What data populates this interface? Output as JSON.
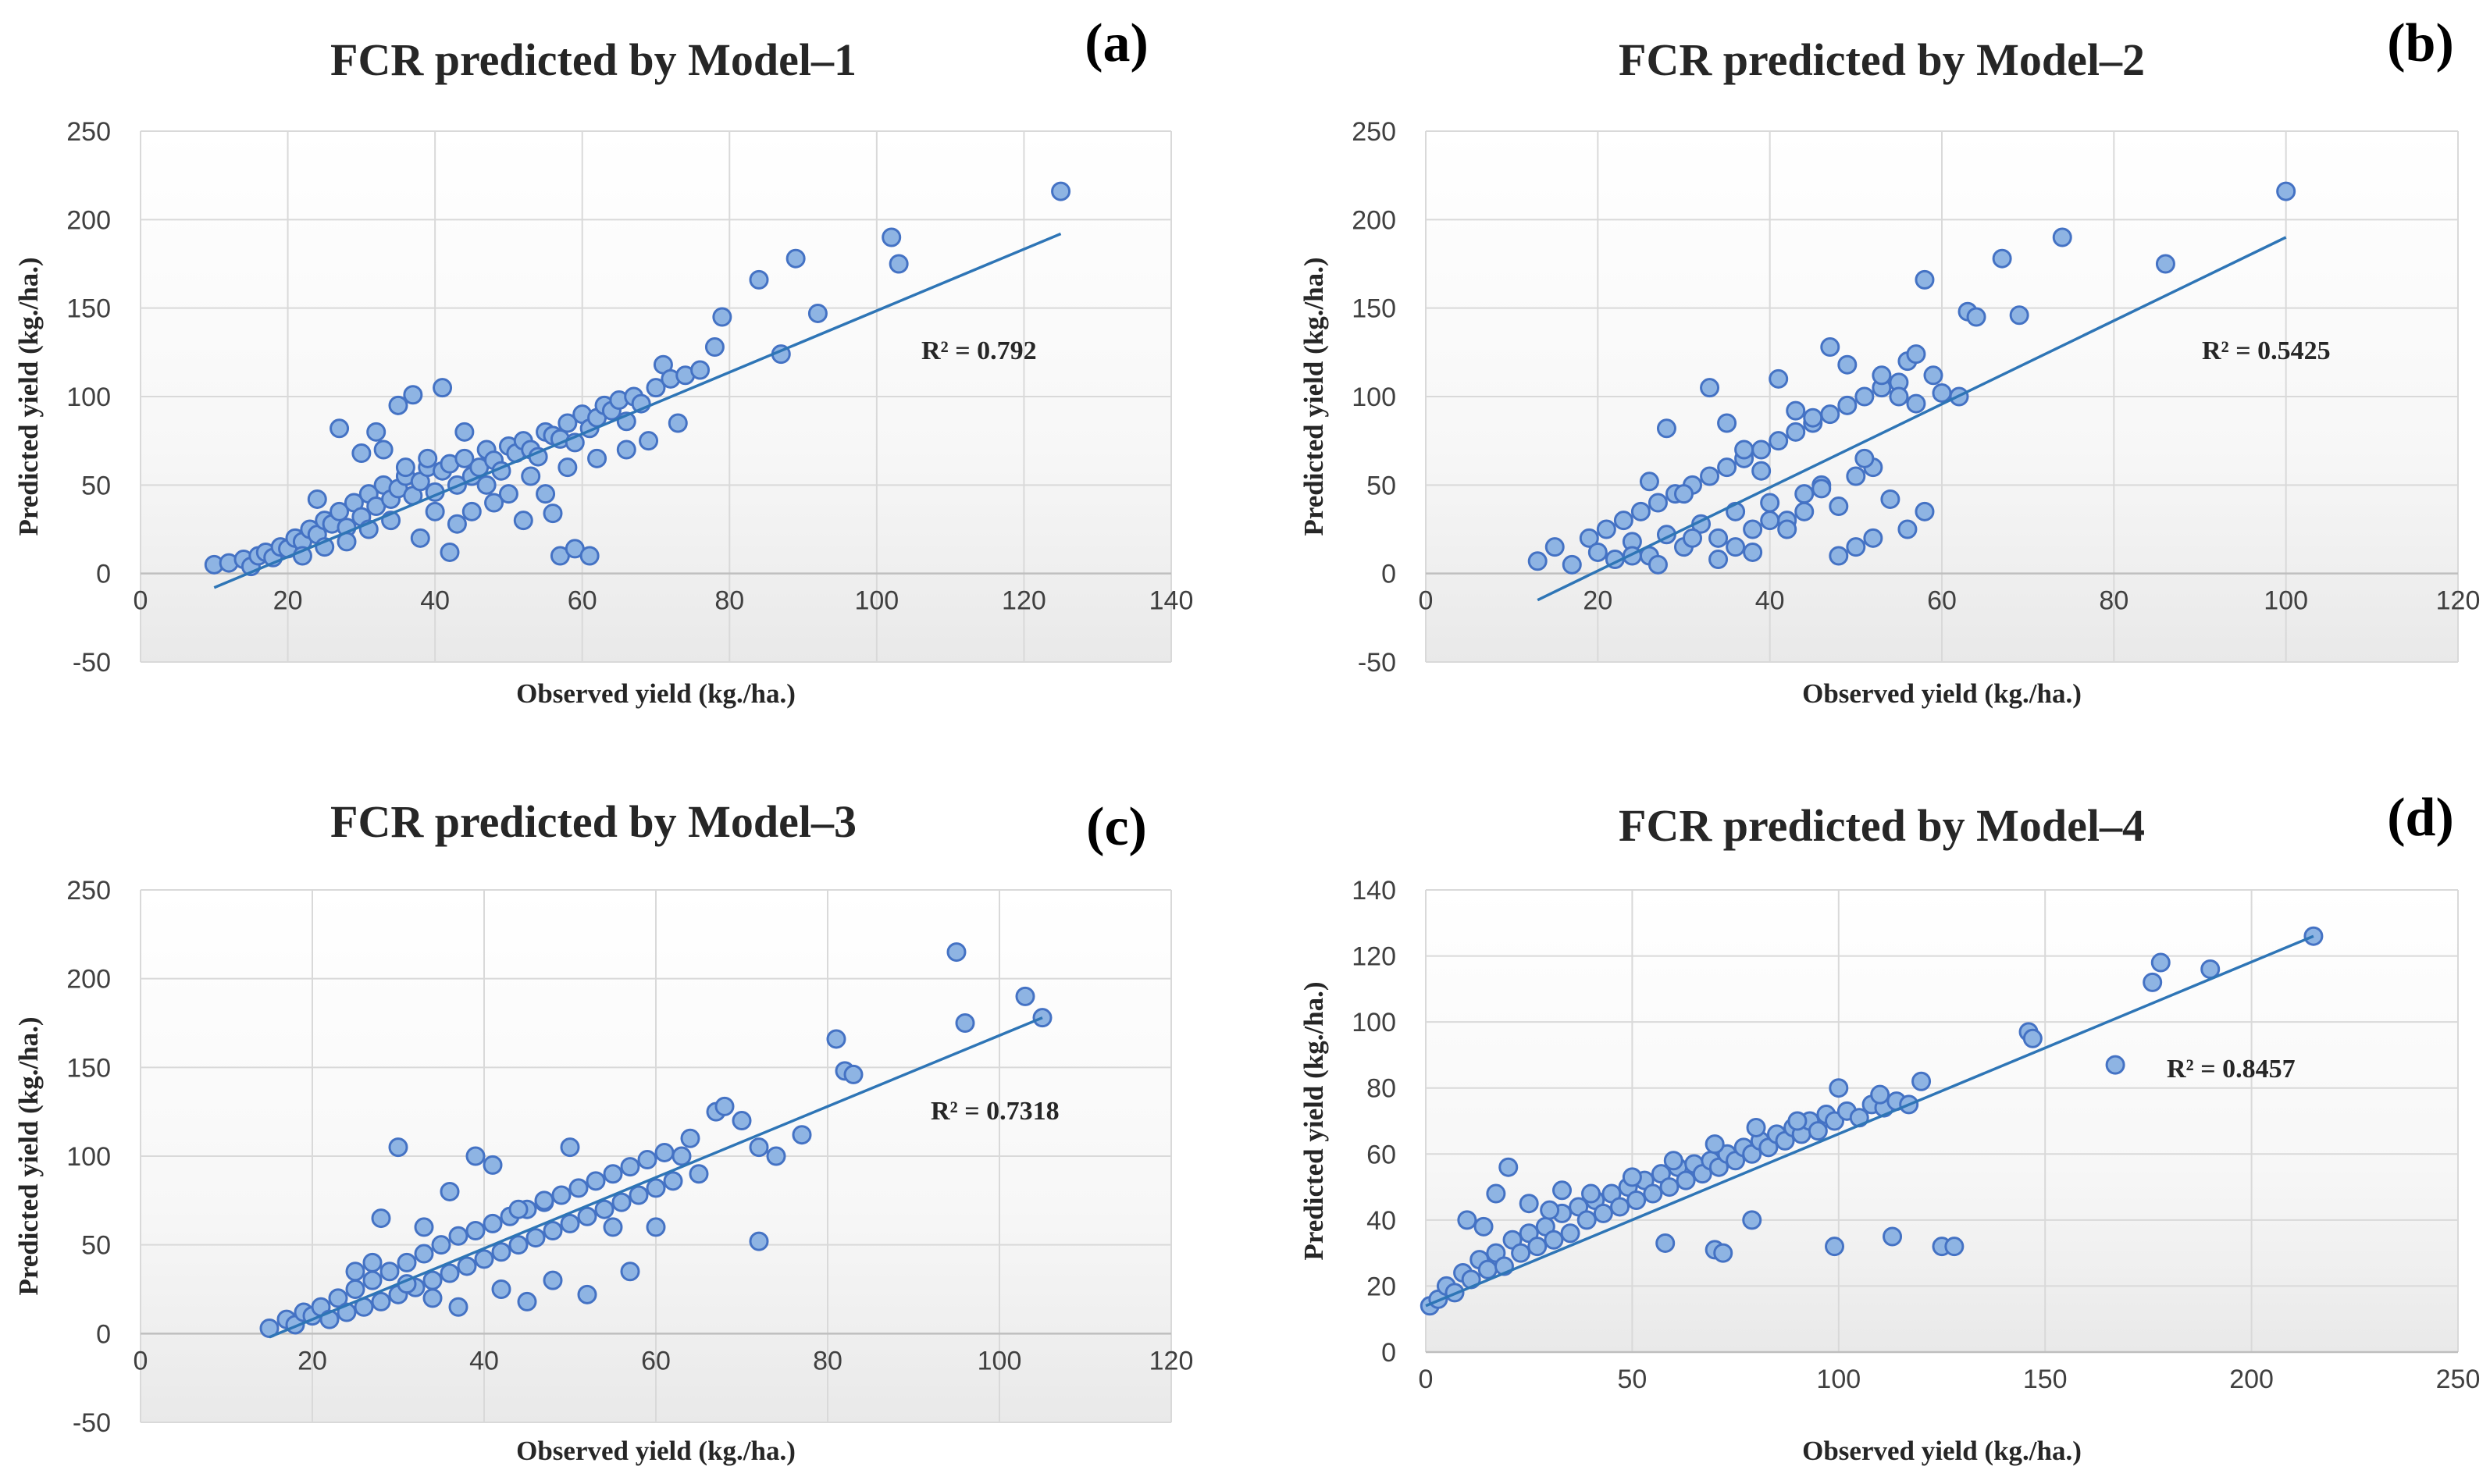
{
  "chart_data": [
    {
      "type": "scatter",
      "panel_label": "(a)",
      "title": "FCR predicted by Model–1",
      "xlabel": "Observed yield (kg./ha.)",
      "ylabel": "Predicted yield (kg./ha.)",
      "xlim": [
        0,
        140
      ],
      "ylim": [
        -50,
        250
      ],
      "xticks": [
        0,
        20,
        40,
        60,
        80,
        100,
        120,
        140
      ],
      "yticks": [
        -50,
        0,
        50,
        100,
        150,
        200,
        250
      ],
      "r2_label": "R² = 0.792",
      "trendline": {
        "x": [
          10,
          125
        ],
        "y": [
          -8,
          192
        ]
      },
      "series": [
        {
          "name": "Observations",
          "x": [
            10,
            12,
            14,
            15,
            16,
            17,
            18,
            19,
            20,
            21,
            22,
            23,
            24,
            25,
            26,
            27,
            28,
            29,
            30,
            31,
            32,
            33,
            34,
            35,
            36,
            37,
            38,
            39,
            40,
            41,
            42,
            43,
            44,
            45,
            46,
            47,
            48,
            49,
            50,
            51,
            52,
            53,
            54,
            55,
            56,
            57,
            58,
            59,
            60,
            61,
            62,
            63,
            64,
            65,
            66,
            67,
            68,
            70,
            71,
            72,
            74,
            76,
            78,
            79,
            84,
            87,
            89,
            92,
            102,
            103,
            125,
            27,
            32,
            35,
            37,
            41,
            44,
            56,
            57,
            59,
            61,
            42,
            24,
            30,
            33,
            36,
            39,
            45,
            48,
            52,
            55,
            22,
            25,
            28,
            31,
            34,
            38,
            40,
            43,
            47,
            50,
            53,
            58,
            62,
            66,
            69,
            73
          ],
          "y": [
            5,
            6,
            8,
            4,
            10,
            12,
            9,
            15,
            14,
            20,
            18,
            25,
            22,
            30,
            28,
            35,
            26,
            40,
            32,
            45,
            38,
            50,
            42,
            48,
            55,
            44,
            52,
            60,
            46,
            58,
            62,
            50,
            65,
            55,
            60,
            70,
            64,
            58,
            72,
            68,
            75,
            70,
            66,
            80,
            78,
            76,
            85,
            74,
            90,
            82,
            88,
            95,
            92,
            98,
            86,
            100,
            96,
            105,
            118,
            110,
            112,
            115,
            128,
            145,
            166,
            124,
            178,
            147,
            190,
            175,
            216,
            82,
            80,
            95,
            101,
            105,
            80,
            34,
            10,
            14,
            10,
            12,
            42,
            68,
            70,
            60,
            65,
            35,
            40,
            30,
            45,
            10,
            15,
            18,
            25,
            30,
            20,
            35,
            28,
            50,
            45,
            55,
            60,
            65,
            70,
            75,
            85
          ]
        }
      ]
    },
    {
      "type": "scatter",
      "panel_label": "(b)",
      "title": "FCR predicted by Model–2",
      "xlabel": "Observed yield (kg./ha.)",
      "ylabel": "Predicted yield (kg./ha.)",
      "xlim": [
        0,
        120
      ],
      "ylim": [
        -50,
        250
      ],
      "xticks": [
        0,
        20,
        40,
        60,
        80,
        100,
        120
      ],
      "yticks": [
        -50,
        0,
        50,
        100,
        150,
        200,
        250
      ],
      "r2_label": "R² = 0.5425",
      "trendline": {
        "x": [
          13,
          100
        ],
        "y": [
          -15,
          190
        ]
      },
      "series": [
        {
          "name": "Observations",
          "x": [
            13,
            15,
            17,
            19,
            20,
            21,
            22,
            23,
            24,
            25,
            26,
            27,
            28,
            29,
            30,
            31,
            32,
            33,
            34,
            35,
            36,
            37,
            38,
            39,
            40,
            41,
            42,
            43,
            44,
            45,
            46,
            47,
            48,
            49,
            50,
            51,
            52,
            53,
            54,
            55,
            56,
            57,
            58,
            59,
            60,
            62,
            63,
            64,
            67,
            69,
            74,
            86,
            100,
            26,
            28,
            30,
            33,
            35,
            37,
            39,
            41,
            43,
            45,
            47,
            49,
            51,
            53,
            55,
            57,
            24,
            27,
            31,
            34,
            36,
            38,
            40,
            42,
            44,
            46,
            48,
            50,
            52,
            56,
            58
          ],
          "y": [
            7,
            15,
            5,
            20,
            12,
            25,
            8,
            30,
            18,
            35,
            10,
            40,
            22,
            45,
            15,
            50,
            28,
            55,
            20,
            60,
            35,
            65,
            25,
            70,
            40,
            75,
            30,
            80,
            45,
            85,
            50,
            90,
            38,
            95,
            55,
            100,
            60,
            105,
            42,
            108,
            120,
            96,
            166,
            112,
            102,
            100,
            148,
            145,
            178,
            146,
            190,
            175,
            216,
            52,
            82,
            45,
            105,
            85,
            70,
            58,
            110,
            92,
            88,
            128,
            118,
            65,
            112,
            100,
            124,
            10,
            5,
            20,
            8,
            15,
            12,
            30,
            25,
            35,
            48,
            10,
            15,
            20,
            25,
            35
          ]
        }
      ]
    },
    {
      "type": "scatter",
      "panel_label": "(c)",
      "title": "FCR predicted by Model–3",
      "xlabel": "Observed yield (kg./ha.)",
      "ylabel": "Predicted yield (kg./ha.)",
      "xlim": [
        0,
        120
      ],
      "ylim": [
        -50,
        250
      ],
      "xticks": [
        0,
        20,
        40,
        60,
        80,
        100,
        120
      ],
      "yticks": [
        -50,
        0,
        50,
        100,
        150,
        200,
        250
      ],
      "r2_label": "R² = 0.7318",
      "trendline": {
        "x": [
          15,
          105
        ],
        "y": [
          -2,
          178
        ]
      },
      "series": [
        {
          "name": "Observations",
          "x": [
            15,
            17,
            18,
            19,
            20,
            21,
            22,
            23,
            24,
            25,
            26,
            27,
            28,
            29,
            30,
            31,
            32,
            33,
            34,
            35,
            36,
            37,
            38,
            39,
            40,
            41,
            42,
            43,
            44,
            45,
            46,
            47,
            48,
            49,
            50,
            51,
            52,
            53,
            54,
            55,
            56,
            57,
            58,
            59,
            60,
            61,
            62,
            63,
            64,
            65,
            67,
            68,
            70,
            72,
            74,
            77,
            81,
            82,
            83,
            95,
            96,
            103,
            105,
            30,
            39,
            41,
            28,
            33,
            36,
            44,
            47,
            50,
            55,
            60,
            72,
            25,
            27,
            31,
            34,
            37,
            42,
            45,
            48,
            52,
            57
          ],
          "y": [
            3,
            8,
            5,
            12,
            10,
            15,
            8,
            20,
            12,
            25,
            15,
            30,
            18,
            35,
            22,
            40,
            26,
            45,
            30,
            50,
            34,
            55,
            38,
            58,
            42,
            62,
            46,
            66,
            50,
            70,
            54,
            74,
            58,
            78,
            62,
            82,
            66,
            86,
            70,
            90,
            74,
            94,
            78,
            98,
            82,
            102,
            86,
            100,
            110,
            90,
            125,
            128,
            120,
            105,
            100,
            112,
            166,
            148,
            146,
            215,
            175,
            190,
            178,
            105,
            100,
            95,
            65,
            60,
            80,
            70,
            75,
            105,
            60,
            60,
            52,
            35,
            40,
            28,
            20,
            15,
            25,
            18,
            30,
            22,
            35
          ]
        }
      ]
    },
    {
      "type": "scatter",
      "panel_label": "(d)",
      "title": "FCR predicted by Model–4",
      "xlabel": "Observed yield (kg./ha.)",
      "ylabel": "Predicted yield (kg./ha.)",
      "xlim": [
        0,
        250
      ],
      "ylim": [
        0,
        140
      ],
      "xticks": [
        0,
        50,
        100,
        150,
        200,
        250
      ],
      "yticks": [
        0,
        20,
        40,
        60,
        80,
        100,
        120,
        140
      ],
      "r2_label": "R² = 0.8457",
      "trendline": {
        "x": [
          0,
          215
        ],
        "y": [
          14,
          126
        ]
      },
      "series": [
        {
          "name": "Observations",
          "x": [
            1,
            3,
            5,
            7,
            9,
            11,
            13,
            15,
            17,
            19,
            21,
            23,
            25,
            27,
            29,
            31,
            33,
            35,
            37,
            39,
            41,
            43,
            45,
            47,
            49,
            51,
            53,
            55,
            57,
            59,
            61,
            63,
            65,
            67,
            69,
            71,
            73,
            75,
            77,
            79,
            81,
            83,
            85,
            87,
            89,
            91,
            93,
            95,
            97,
            99,
            102,
            105,
            108,
            111,
            114,
            117,
            120,
            146,
            147,
            167,
            176,
            178,
            190,
            215,
            20,
            17,
            79,
            99,
            113,
            125,
            128,
            58,
            70,
            72,
            33,
            10,
            14,
            25,
            30,
            40,
            50,
            60,
            70,
            80,
            90,
            100,
            110
          ],
          "y": [
            14,
            16,
            20,
            18,
            24,
            22,
            28,
            25,
            30,
            26,
            34,
            30,
            36,
            32,
            38,
            34,
            42,
            36,
            44,
            40,
            46,
            42,
            48,
            44,
            50,
            46,
            52,
            48,
            54,
            50,
            56,
            52,
            57,
            54,
            58,
            56,
            60,
            58,
            62,
            60,
            64,
            62,
            66,
            64,
            68,
            66,
            70,
            67,
            72,
            70,
            73,
            71,
            75,
            74,
            76,
            75,
            82,
            97,
            95,
            87,
            112,
            118,
            116,
            126,
            56,
            48,
            40,
            32,
            35,
            32,
            32,
            33,
            31,
            30,
            49,
            40,
            38,
            45,
            43,
            48,
            53,
            58,
            63,
            68,
            70,
            80,
            78
          ]
        }
      ]
    }
  ]
}
